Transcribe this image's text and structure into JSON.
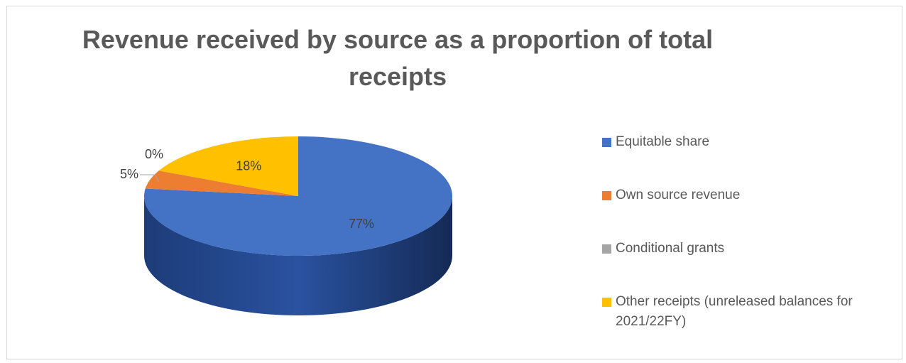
{
  "chart_data": {
    "type": "pie",
    "title": "Revenue received by source as a proportion of total receipts",
    "categories": [
      "Equitable share",
      "Own source revenue",
      "Conditional grants",
      "Other receipts (unreleased balances for 2021/22FY)"
    ],
    "values": [
      77,
      5,
      0,
      18
    ],
    "data_labels": [
      "77%",
      "5%",
      "0%",
      "18%"
    ],
    "colors": [
      "#4472c4",
      "#ed7d31",
      "#a5a5a5",
      "#ffc000"
    ],
    "legend_position": "right",
    "style": "3d"
  }
}
